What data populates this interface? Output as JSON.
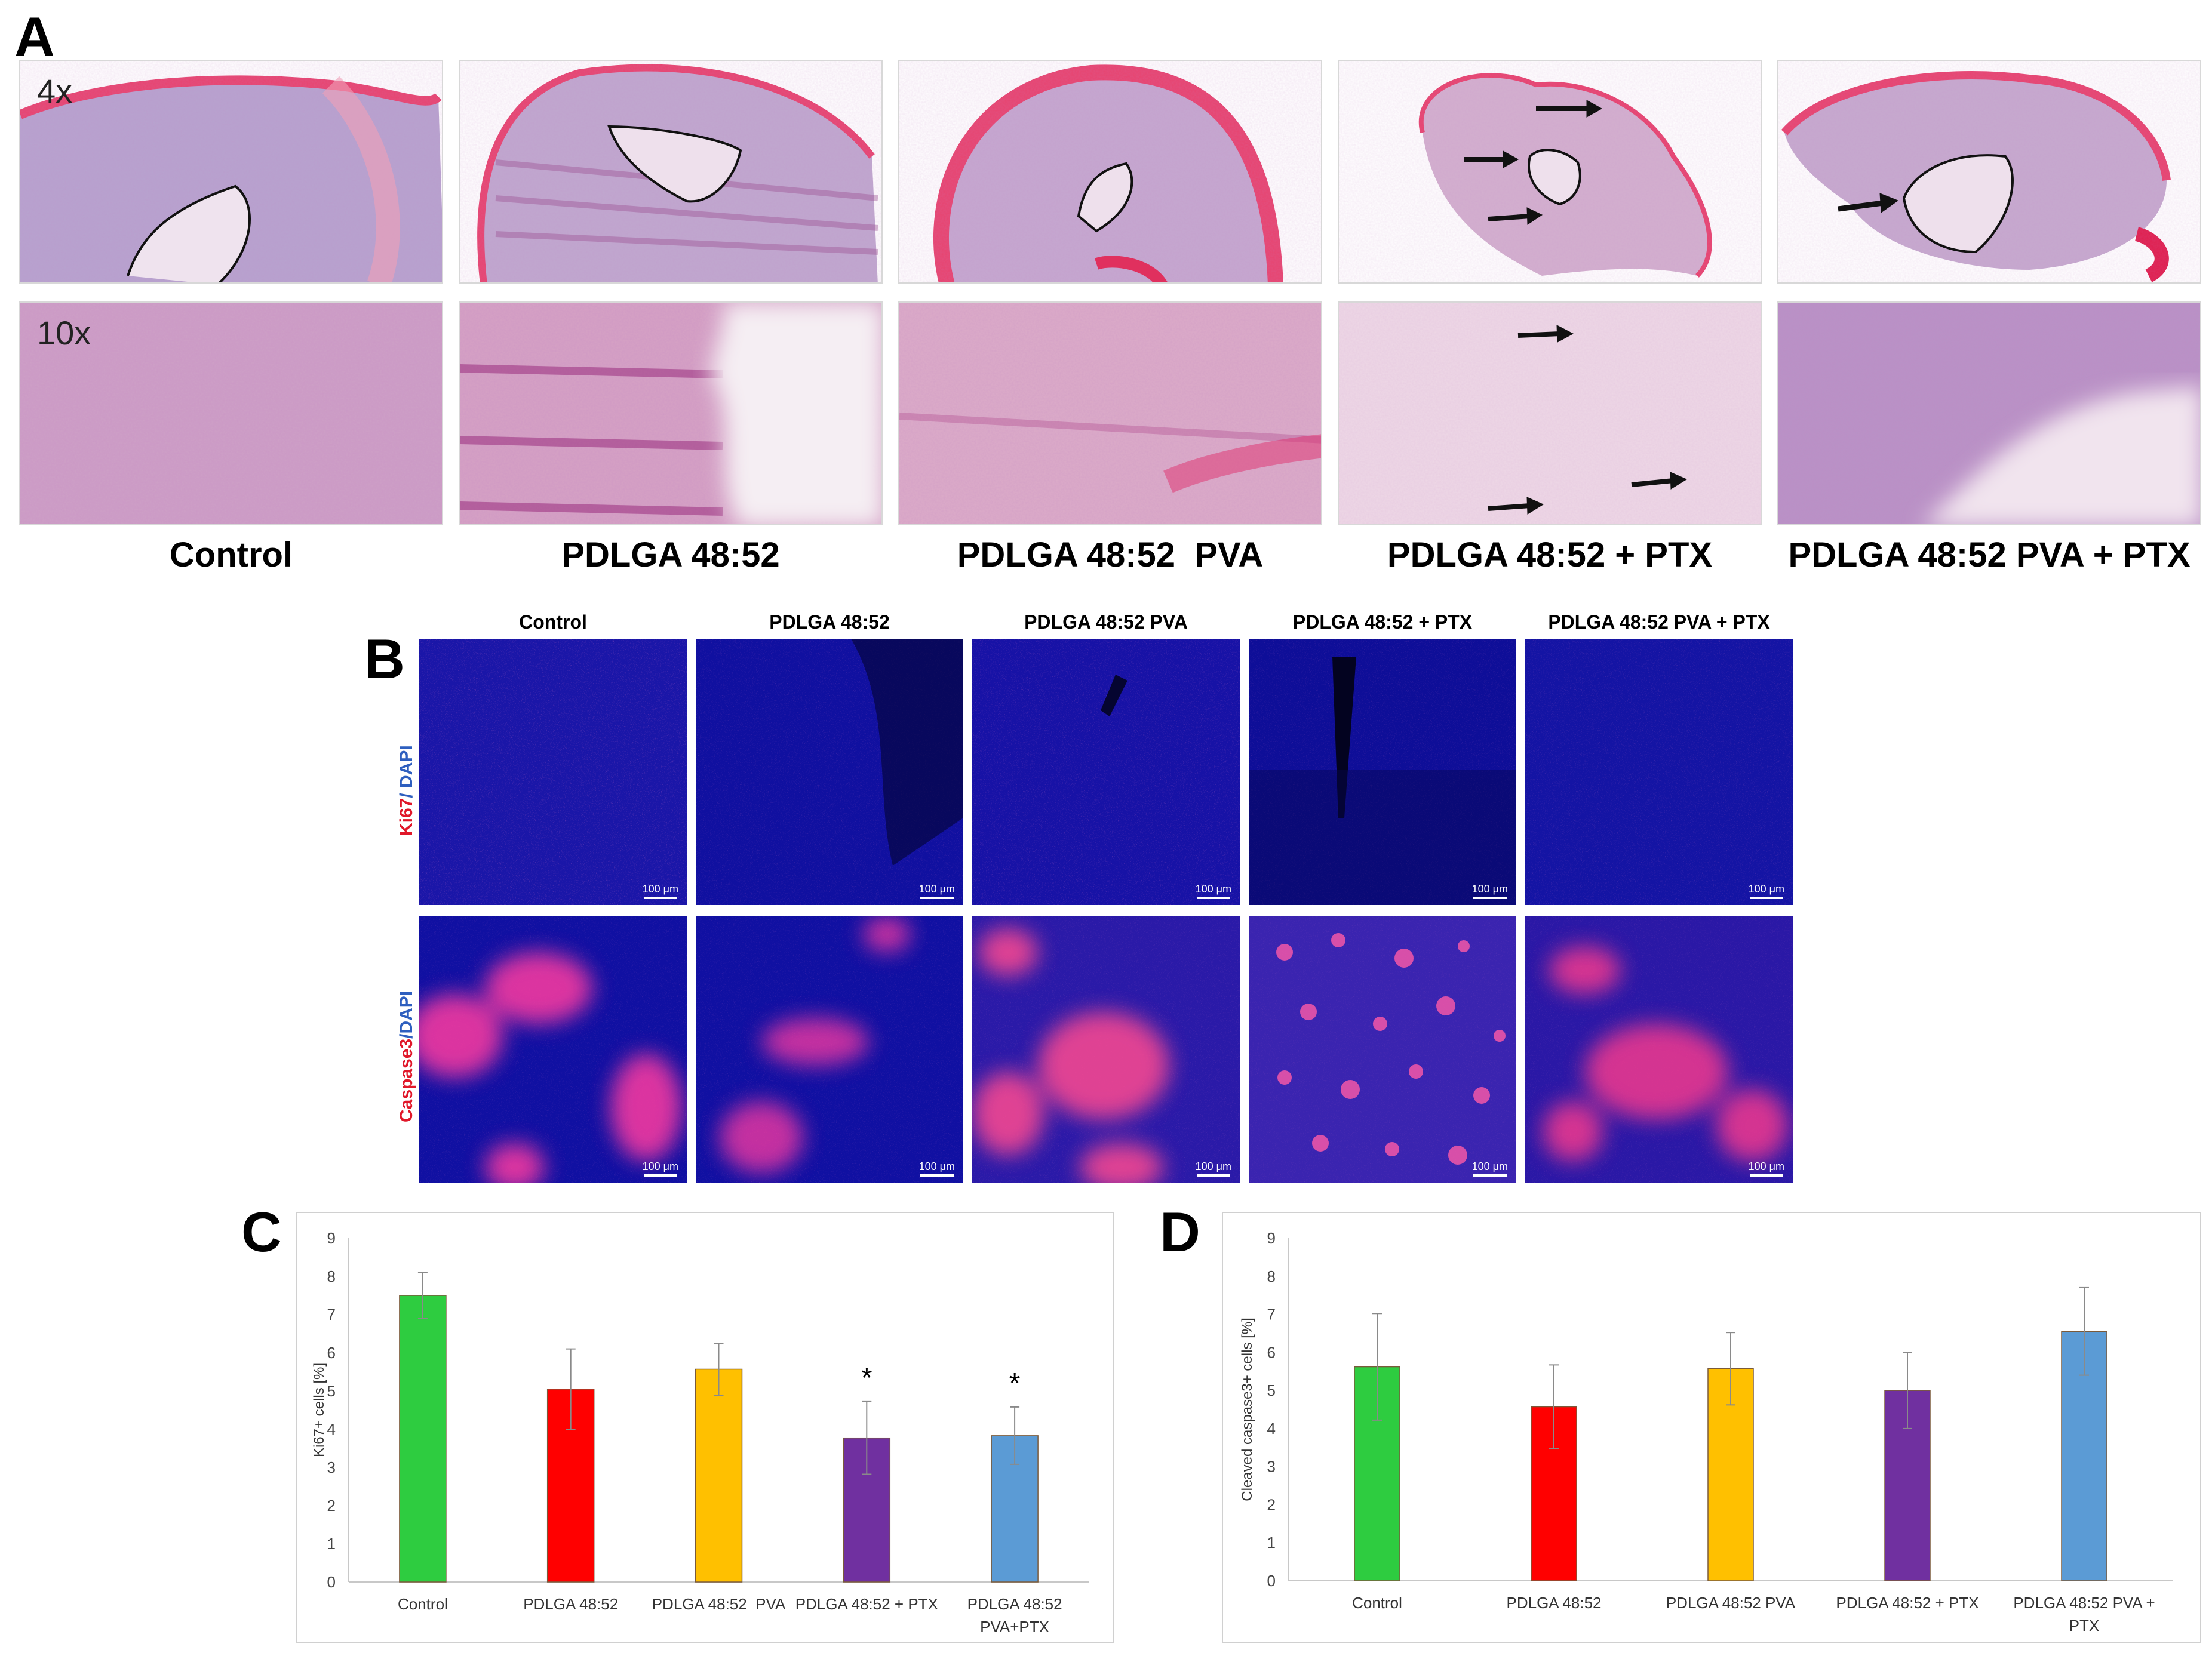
{
  "panels": {
    "A": {
      "letter": "A",
      "mag_4x": "4x",
      "mag_10x": "10x",
      "columns": [
        "Control",
        "PDLGA 48:52",
        "PDLGA 48:52  PVA",
        "PDLGA 48:52 + PTX",
        "PDLGA 48:52 PVA + PTX"
      ]
    },
    "B": {
      "letter": "B",
      "columns": [
        "Control",
        "PDLGA 48:52",
        "PDLGA 48:52 PVA",
        "PDLGA 48:52 + PTX",
        "PDLGA 48:52 PVA + PTX"
      ],
      "row1_label_red": "Ki67",
      "row1_label_blue": "/ DAPI",
      "row2_label_red": "Caspase3",
      "row2_label_blue": "/DAPI",
      "scale_label": "100 μm"
    },
    "C": {
      "letter": "C"
    },
    "D": {
      "letter": "D"
    }
  },
  "chart_data": [
    {
      "type": "bar",
      "panel": "C",
      "categories": [
        "Control",
        "PDLGA 48:52",
        "PDLGA 48:52  PVA",
        "PDLGA 48:52 + PTX",
        "PDLGA 48:52 PVA+PTX"
      ],
      "values": [
        7.5,
        5.05,
        5.57,
        3.77,
        3.83
      ],
      "errors": [
        0.6,
        1.05,
        0.68,
        0.95,
        0.75
      ],
      "significance": [
        "",
        "",
        "",
        "*",
        "*"
      ],
      "colors": [
        "#2ecc40",
        "#ff0000",
        "#ffc000",
        "#7030a0",
        "#5b9bd5"
      ],
      "ylabel": "Ki67+ cells [%]",
      "ylim": [
        0,
        9
      ],
      "yticks": [
        0,
        1,
        2,
        3,
        4,
        5,
        6,
        7,
        8,
        9
      ],
      "grid": false
    },
    {
      "type": "bar",
      "panel": "D",
      "categories": [
        "Control",
        "PDLGA 48:52",
        "PDLGA 48:52 PVA",
        "PDLGA 48:52 + PTX",
        "PDLGA 48:52 PVA + PTX"
      ],
      "values": [
        5.62,
        4.57,
        5.57,
        5.0,
        6.55
      ],
      "errors": [
        1.4,
        1.1,
        0.95,
        1.0,
        1.15
      ],
      "significance": [
        "",
        "",
        "",
        "",
        ""
      ],
      "colors": [
        "#2ecc40",
        "#ff0000",
        "#ffc000",
        "#7030a0",
        "#5b9bd5"
      ],
      "ylabel": "Cleaved caspase3+ cells [%]",
      "ylim": [
        0,
        9
      ],
      "yticks": [
        0,
        1,
        2,
        3,
        4,
        5,
        6,
        7,
        8,
        9
      ],
      "grid": false
    }
  ]
}
